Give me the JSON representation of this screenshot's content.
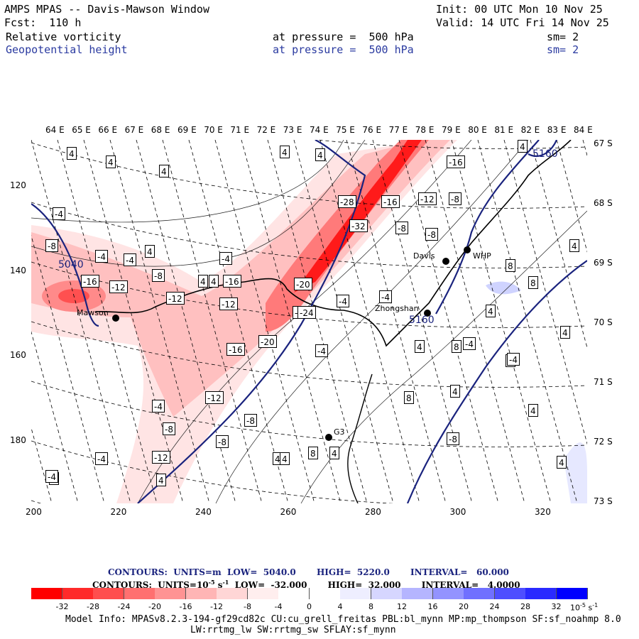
{
  "header": {
    "title": "AMPS MPAS -- Davis-Mawson Window",
    "forecast": "Fcst:  110 h",
    "init": "Init: 00 UTC Mon 10 Nov 25",
    "valid": "Valid: 14 UTC Fri 14 Nov 25",
    "field1_name": "Relative vorticity",
    "field1_pressure": "at pressure =  500 hPa",
    "field1_sm": "sm= 2",
    "field2_name": "Geopotential height",
    "field2_pressure": "at pressure =  500 hPa",
    "field2_sm": "sm= 2"
  },
  "map": {
    "lon_labels": [
      "64 E",
      "65 E",
      "66 E",
      "67 E",
      "68 E",
      "69 E",
      "70 E",
      "71 E",
      "72 E",
      "73 E",
      "74 E",
      "75 E",
      "76 E",
      "77 E",
      "78 E",
      "79 E",
      "80 E",
      "81 E",
      "82 E",
      "83 E",
      "84 E"
    ],
    "lat_labels": [
      "67 S",
      "68 S",
      "69 S",
      "70 S",
      "71 S",
      "72 S",
      "73 S"
    ],
    "x_ticks": [
      "200",
      "220",
      "240",
      "260",
      "280",
      "300",
      "320"
    ],
    "y_ticks": [
      "120",
      "140",
      "160",
      "180"
    ],
    "stations": [
      "Mawson",
      "Davis",
      "WHP",
      "Zhongshan",
      "G3"
    ],
    "height_contour_labels": [
      "5040",
      "5160",
      "5160"
    ],
    "vorticity_labels": [
      "4",
      "4",
      "4",
      "4",
      "4",
      "4",
      "4",
      "-4",
      "-8",
      "-4",
      "-16",
      "-12",
      "4",
      "-8",
      "-12",
      "-4",
      "-16",
      "-12",
      "-28",
      "-16",
      "-12",
      "-8",
      "-16",
      "-32",
      "-8",
      "-8",
      "-4",
      "-20",
      "-4",
      "-4",
      "-4",
      "-24",
      "-16",
      "-20",
      "-4",
      "-12",
      "-4",
      "-8",
      "8",
      "-8",
      "-8",
      "-12",
      "8",
      "4",
      "4",
      "4",
      "-4",
      "4",
      "8",
      "8",
      "-8",
      "4",
      "-4",
      "4",
      "4",
      "-4",
      "4",
      "8",
      "8",
      "4",
      "4",
      "4",
      "4",
      "4",
      "-4"
    ],
    "colors": {
      "neg_strong": "#ff0000",
      "pos_strong": "#0000ff",
      "height_contour": "#1a237e"
    }
  },
  "contour_info": {
    "line1": "CONTOURS:  UNITS=m  LOW=  5040.0       HIGH=  5220.0       INTERVAL=   60.000",
    "line2_prefix": "CONTOURS:  UNITS=10",
    "line2_exp": "-5",
    "line2_unit": "s",
    "line2_exp2": "-1",
    "line2_rest": "  LOW=  -32.000       HIGH=  32.000       INTERVAL=   4.0000"
  },
  "colorbar": {
    "ticks": [
      "-32",
      "-28",
      "-24",
      "-20",
      "-16",
      "-12",
      "-8",
      "-4",
      "0",
      "4",
      "8",
      "12",
      "16",
      "20",
      "24",
      "28",
      "32"
    ],
    "unit_base": "10",
    "unit_exp": "-5",
    "unit_s": "s",
    "unit_exp2": "-1",
    "colors": [
      "#ff0000",
      "#ff2a2a",
      "#ff4e4e",
      "#ff7070",
      "#ff9393",
      "#ffb5b5",
      "#ffd6d6",
      "#ffeeee",
      "#ffffff",
      "#ffffff",
      "#eeeeff",
      "#d6d6ff",
      "#b5b5ff",
      "#9393ff",
      "#7070ff",
      "#4e4eff",
      "#2a2aff",
      "#0000ff"
    ]
  },
  "footer": {
    "model_info": "Model Info: MPASv8.2.3-194-gf29cd82c CU:cu_grell_freitas PBL:bl_mynn MP:mp_thompson SF:sf_noahmp 8.0",
    "model_info2": "LW:rrtmg_lw SW:rrtmg_sw SFLAY:sf_mynn"
  }
}
